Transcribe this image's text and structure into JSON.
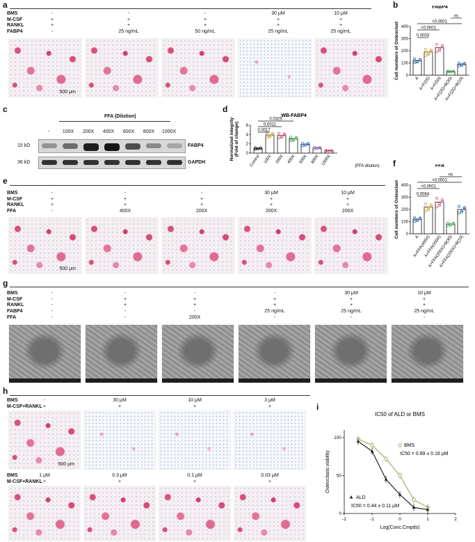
{
  "panels": {
    "a": {
      "letter": "a",
      "row_labels": [
        "BMS",
        "M-CSF",
        "RANKL",
        "FABP4"
      ],
      "columns": [
        [
          "-",
          "+",
          "+",
          "-"
        ],
        [
          "-",
          "+",
          "+",
          "25 ng/mL"
        ],
        [
          "-",
          "+",
          "+",
          "50 ng/mL"
        ],
        [
          "30 μM",
          "+",
          "+",
          "25 ng/mL"
        ],
        [
          "10 μM",
          "+",
          "+",
          "25 ng/mL"
        ]
      ],
      "scale_bar": "500 μm"
    },
    "b": {
      "letter": "b",
      "title": "FABP4",
      "ylabel": "Cell numbers of Osteoclast",
      "yticks": [
        "0",
        "100",
        "200",
        "300",
        "400"
      ],
      "categories": [
        "A",
        "A+F(25)",
        "A+F(50)",
        "A+F(25)+B(30)",
        "A+F(25)+B(10)"
      ],
      "sig": [
        "ns",
        "<0.0001",
        "<0.0001",
        "0.0003"
      ]
    },
    "c": {
      "letter": "c",
      "title": "FFA (Dilution)",
      "lanes": [
        "-",
        "100X",
        "200X",
        "400X",
        "600X",
        "800X",
        "1000X"
      ],
      "kd_labels": [
        "15 kD",
        "36 kD"
      ],
      "proteins": [
        "FABP4",
        "GAPDH"
      ]
    },
    "d": {
      "letter": "d",
      "title": "WB-FABP4",
      "ylabel": "Normalized integrity\n(Fold of change)",
      "yticks": [
        "0",
        "2",
        "4",
        "6"
      ],
      "categories": [
        "Control",
        "100X",
        "200X",
        "400X",
        "600X",
        "800X",
        "1000X"
      ],
      "xnote": "(FFA dilution)",
      "sig": [
        "0.0329",
        "0.0011",
        "0.0017"
      ]
    },
    "e": {
      "letter": "e",
      "row_labels": [
        "BMS",
        "M-CSF",
        "RANKL",
        "FFA"
      ],
      "columns": [
        [
          "-",
          "+",
          "+",
          "-"
        ],
        [
          "-",
          "+",
          "+",
          "400X"
        ],
        [
          "-",
          "+",
          "+",
          "200X"
        ],
        [
          "30 μM",
          "+",
          "+",
          "200X"
        ],
        [
          "10 μM",
          "+",
          "+",
          "200X"
        ]
      ],
      "scale_bar": "500 μm"
    },
    "f": {
      "letter": "f",
      "title": "FFA",
      "ylabel": "Cell numbers of Osteoclast",
      "yticks": [
        "0",
        "100",
        "200",
        "300",
        "400"
      ],
      "categories": [
        "A",
        "A+FFA(400X)",
        "A+FFA(200X)",
        "A+FFA(200X)+B(30)",
        "A+FFA(200X)+B(10)"
      ],
      "sig": [
        "ns",
        "<0.0001",
        "<0.0001",
        "0.0064"
      ]
    },
    "g": {
      "letter": "g",
      "row_labels": [
        "BMS",
        "M-CSF",
        "RANKL",
        "FABP4",
        "FFA"
      ],
      "columns": [
        [
          "-",
          "-",
          "-",
          "-",
          "-"
        ],
        [
          "-",
          "+",
          "+",
          "-",
          "-"
        ],
        [
          "-",
          "+",
          "+",
          "-",
          "200X"
        ],
        [
          "-",
          "+",
          "+",
          "25 ng/mL",
          "-"
        ],
        [
          "30 μM",
          "+",
          "+",
          "25 ng/mL",
          "-"
        ],
        [
          "10 μM",
          "+",
          "+",
          "25 ng/mL",
          "-"
        ]
      ]
    },
    "h": {
      "letter": "h",
      "row_labels": [
        "BMS",
        "M-CSF+RANKL"
      ],
      "top_columns": [
        [
          "-",
          "+"
        ],
        [
          "30 μM",
          "+"
        ],
        [
          "10 μM",
          "+"
        ],
        [
          "3 μM",
          "+"
        ]
      ],
      "bottom_columns": [
        [
          "1 μM",
          "+"
        ],
        [
          "0.3 μM",
          "+"
        ],
        [
          "0.1 μM",
          "+"
        ],
        [
          "0.03 μM",
          "+"
        ]
      ],
      "scale_bar": "500 μm"
    },
    "i": {
      "letter": "i",
      "title": "IC50 of ALD or BMS",
      "ylabel": "Osteoclasts viability",
      "xlabel": "Log(Conc.Cmpds)",
      "yticks": [
        "0",
        "50",
        "100"
      ],
      "xticks": [
        "-2",
        "-1",
        "0",
        "1",
        "2"
      ],
      "bms_label": "BMS",
      "bms_ic50": "IC50 = 0.89 ± 0.18 μM",
      "ald_label": "ALD",
      "ald_ic50": "IC50 = 0.44 ± 0.11 μM"
    }
  },
  "colors": {
    "stain": "#d94f7e",
    "bms_series": "#a8a86a",
    "ald_series": "#222222",
    "bar_dot_blue": "#3a6fb0",
    "bar_dot_pink": "#d9608a",
    "bar_dot_green": "#4caf50"
  },
  "chart_data": [
    {
      "id": "b",
      "type": "bar",
      "title": "FABP4",
      "ylabel": "Cell numbers of Osteoclast",
      "categories": [
        "A",
        "A+F(25)",
        "A+F(50)",
        "A+F(25)+B(30)",
        "A+F(25)+B(10)"
      ],
      "values": [
        120,
        190,
        225,
        30,
        90
      ],
      "ylim": [
        0,
        400
      ],
      "dot_colors": [
        "#3a6fb0",
        "#d9a640",
        "#d9608a",
        "#4caf50",
        "#3a6fb0"
      ]
    },
    {
      "id": "d",
      "type": "bar",
      "title": "WB-FABP4",
      "ylabel": "Normalized integrity (Fold of change)",
      "categories": [
        "Control",
        "100X",
        "200X",
        "400X",
        "600X",
        "800X",
        "1000X"
      ],
      "values": [
        1.0,
        3.9,
        3.8,
        3.1,
        1.9,
        1.1,
        0.5
      ],
      "ylim": [
        0,
        6
      ],
      "dot_colors": [
        "#222222",
        "#d9a640",
        "#d9608a",
        "#4caf50",
        "#3a6fb0",
        "#9b6fc0",
        "#d9608a"
      ]
    },
    {
      "id": "f",
      "type": "bar",
      "title": "FFA",
      "ylabel": "Cell numbers of Osteoclast",
      "categories": [
        "A",
        "A+FFA(400X)",
        "A+FFA(200X)",
        "A+FFA(200X)+B(30)",
        "A+FFA(200X)+B(10)"
      ],
      "values": [
        120,
        220,
        260,
        80,
        200
      ],
      "ylim": [
        0,
        400
      ],
      "dot_colors": [
        "#3a6fb0",
        "#d9a640",
        "#d9608a",
        "#4caf50",
        "#3a6fb0"
      ]
    },
    {
      "id": "i",
      "type": "line",
      "title": "IC50 of ALD or BMS",
      "xlabel": "Log(Conc.Cmpds)",
      "ylabel": "Osteoclasts viability",
      "xlim": [
        -2,
        2
      ],
      "ylim": [
        0,
        110
      ],
      "series": [
        {
          "name": "BMS",
          "x": [
            -1.5,
            -1.0,
            -0.5,
            0.0,
            0.5,
            1.0
          ],
          "y": [
            98,
            90,
            72,
            50,
            18,
            8
          ]
        },
        {
          "name": "ALD",
          "x": [
            -1.5,
            -1.0,
            -0.5,
            0.0,
            0.5,
            1.0
          ],
          "y": [
            95,
            82,
            45,
            25,
            8,
            5
          ]
        }
      ]
    }
  ]
}
